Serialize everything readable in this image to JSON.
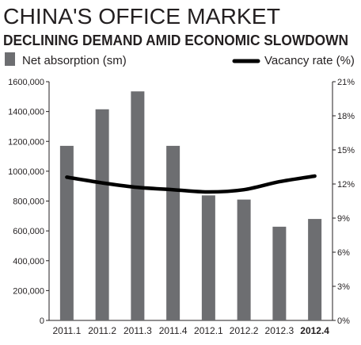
{
  "chart_data": {
    "type": "bar",
    "title": "CHINA'S OFFICE MARKET",
    "subtitle": "DECLINING DEMAND AMID ECONOMIC SLOWDOWN",
    "categories": [
      "2011.1",
      "2011.2",
      "2011.3",
      "2011.4",
      "2012.1",
      "2012.2",
      "2012.3",
      "2012.4"
    ],
    "highlight_category": "2012.4",
    "series": [
      {
        "name": "Net absorption (sm)",
        "type": "bar",
        "axis": "left",
        "color": "#6d6e71",
        "values": [
          1170000,
          1415000,
          1535000,
          1170000,
          838000,
          810000,
          628000,
          680000
        ]
      },
      {
        "name": "Vacancy rate (%)",
        "type": "line",
        "axis": "right",
        "color": "#000000",
        "values": [
          12.6,
          12.1,
          11.7,
          11.5,
          11.3,
          11.5,
          12.2,
          12.7
        ]
      }
    ],
    "left_axis": {
      "ylim": [
        0,
        1600000
      ],
      "ticks": [
        0,
        200000,
        400000,
        600000,
        800000,
        1000000,
        1200000,
        1400000,
        1600000
      ],
      "tick_labels": [
        "0",
        "200,000",
        "400,000",
        "600,000",
        "800,000",
        "1000,000",
        "1200,000",
        "1400,000",
        "1600,000"
      ]
    },
    "right_axis": {
      "ylim": [
        0,
        21
      ],
      "ticks": [
        0,
        3,
        6,
        9,
        12,
        15,
        18,
        21
      ],
      "tick_labels": [
        "0%",
        "3%",
        "6%",
        "9%",
        "12%",
        "15%",
        "18%",
        "21%"
      ]
    },
    "grid": false,
    "legend_placement": "top"
  }
}
